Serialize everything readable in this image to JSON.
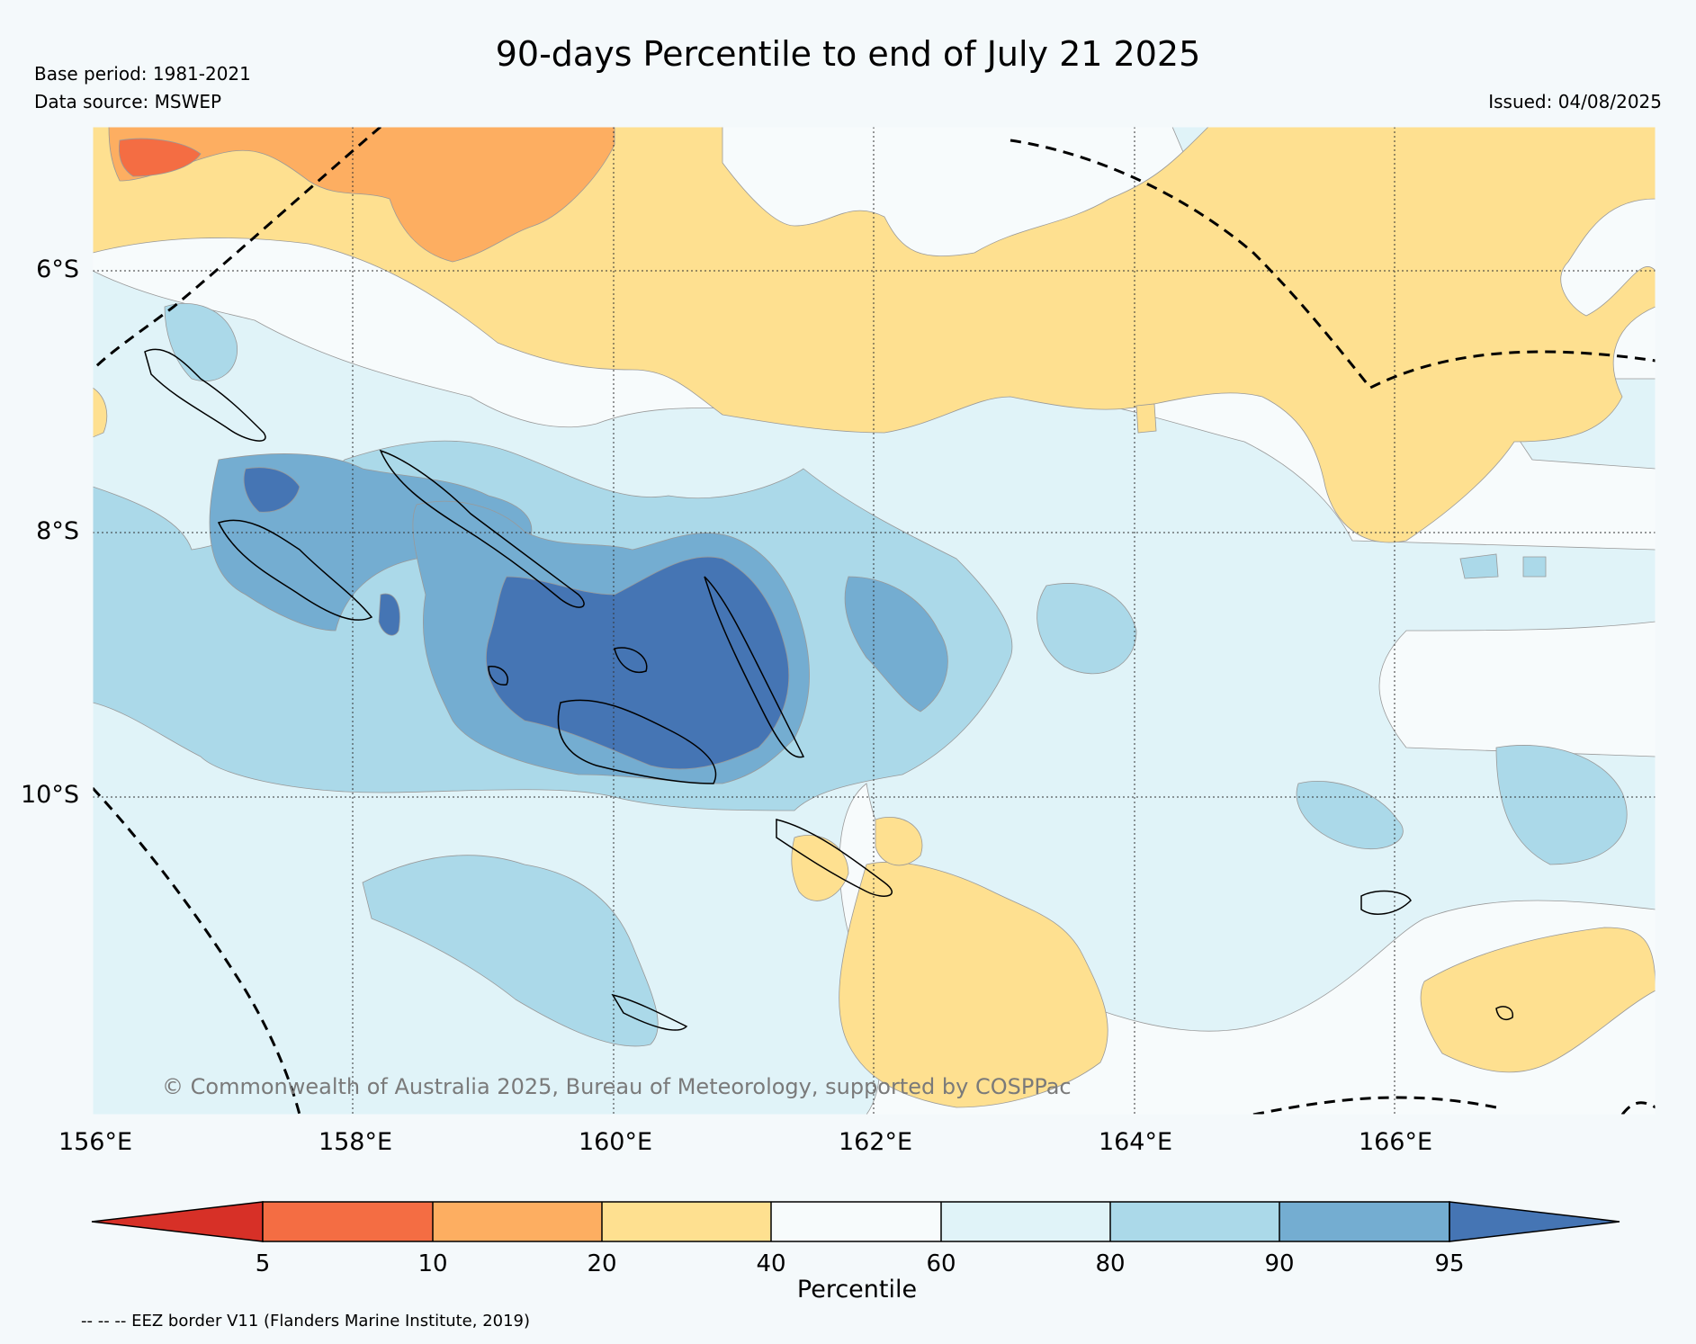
{
  "title": "90-days Percentile to end of July 21 2025",
  "base_period": "Base period: 1981-2021",
  "data_source": "Data source: MSWEP",
  "issued": "Issued: 04/08/2025",
  "copyright": "© Commonwealth of Australia 2025, Bureau of Meteorology, supported by COSPPac",
  "lat_labels": [
    "6°S",
    "8°S",
    "10°S"
  ],
  "lon_labels": [
    "156°E",
    "158°E",
    "160°E",
    "162°E",
    "164°E",
    "166°E"
  ],
  "colorbar": {
    "label": "Percentile",
    "ticks": [
      "5",
      "10",
      "20",
      "40",
      "60",
      "80",
      "90",
      "95"
    ],
    "colors": {
      "lt5": "#d73027",
      "p5_10": "#f46d43",
      "p10_20": "#fdae61",
      "p20_40": "#fee090",
      "p40_60": "#f7fbfc",
      "p60_80": "#e0f3f8",
      "p80_90": "#abd9e9",
      "p90_95": "#74add1",
      "gt95": "#4575b4"
    }
  },
  "legend_note": "-- -- -- EEZ border V11 (Flanders Marine Institute, 2019)"
}
